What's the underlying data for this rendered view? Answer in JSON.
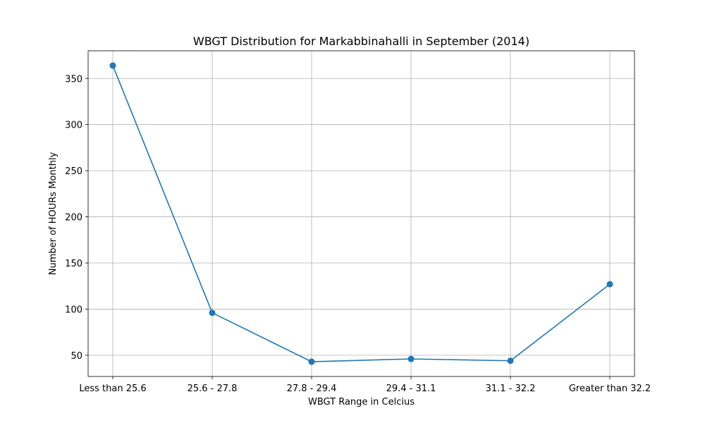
{
  "chart_data": {
    "type": "line",
    "title": "WBGT Distribution for Markabbinahalli in September (2014)",
    "xlabel": "WBGT Range in Celcius",
    "ylabel": "Number of HOURs Monthly",
    "categories": [
      "Less than 25.6",
      "25.6 - 27.8",
      "27.8 - 29.4",
      "29.4 - 31.1",
      "31.1 - 32.2",
      "Greater than 32.2"
    ],
    "series": [
      {
        "values": [
          364,
          96,
          43,
          46,
          44,
          127
        ]
      }
    ],
    "ylim": [
      27,
      380
    ],
    "yticks": [
      50,
      100,
      150,
      200,
      250,
      300,
      350
    ],
    "ytick_labels": [
      "50",
      "100",
      "150",
      "200",
      "250",
      "300",
      "350"
    ],
    "grid": true,
    "line_color": "#1f77b4",
    "marker": "circle"
  }
}
